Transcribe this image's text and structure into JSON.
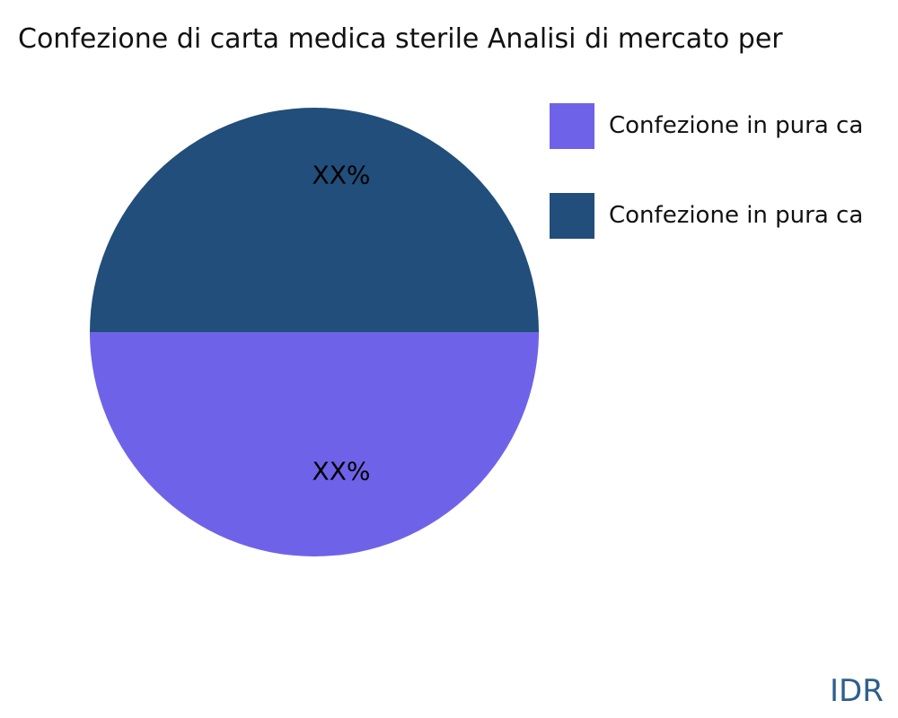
{
  "title": "Confezione di carta medica sterile Analisi di mercato per",
  "watermark": "IDR",
  "colors": {
    "slice_purple": "#6E63E8",
    "slice_navy": "#214E7B",
    "watermark_blue": "#2E5F8C",
    "background": "#ffffff",
    "text": "#111111"
  },
  "pie": {
    "top_label": "XX%",
    "bottom_label": "XX%"
  },
  "legend": {
    "items": [
      {
        "label": "Confezione in pura ca",
        "color": "#6E63E8"
      },
      {
        "label": "Confezione in pura ca",
        "color": "#214E7B"
      }
    ]
  },
  "chart_data": {
    "type": "pie",
    "title": "Confezione di carta medica sterile Analisi di mercato per",
    "slices": [
      {
        "legend_label": "Confezione in pura ca",
        "data_label": "XX%",
        "value_pct_estimated": 50,
        "color": "#6E63E8",
        "position": "bottom-half"
      },
      {
        "legend_label": "Confezione in pura ca",
        "data_label": "XX%",
        "value_pct_estimated": 50,
        "color": "#214E7B",
        "position": "top-half"
      }
    ],
    "data_label_color": "#000000",
    "legend_position": "upper-right",
    "legend_truncated": true,
    "title_truncated": true
  }
}
